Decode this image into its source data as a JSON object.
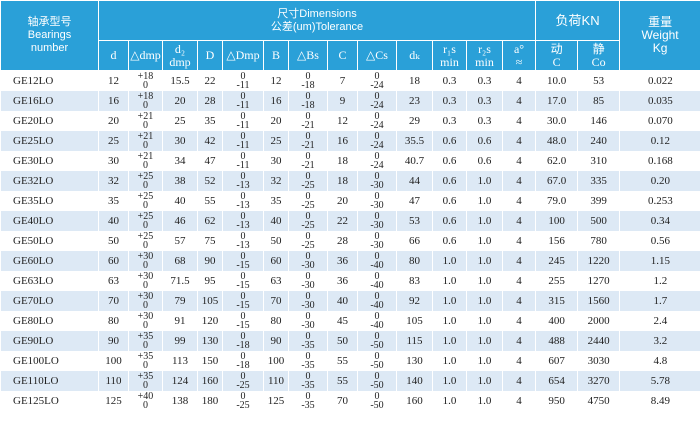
{
  "header": {
    "model": [
      "轴承型号",
      "Bearings",
      "number"
    ],
    "dimensions": [
      "尺寸Dimensions",
      "公差(um)Tolerance"
    ],
    "load": "负荷KN",
    "weight": [
      "重量",
      "Weight",
      "Kg"
    ]
  },
  "columns": [
    [
      "d"
    ],
    [
      "△dmp"
    ],
    [
      "d₂",
      "dmp"
    ],
    [
      "D"
    ],
    [
      "△Dmp"
    ],
    [
      "B"
    ],
    [
      "△Bs"
    ],
    [
      "C"
    ],
    [
      "△Cs"
    ],
    [
      "dₖ"
    ],
    [
      "r₁s",
      "min"
    ],
    [
      "r₂s",
      "min"
    ],
    [
      "a°",
      "≈"
    ],
    [
      "动",
      "C"
    ],
    [
      "静",
      "Co"
    ]
  ],
  "table": {
    "rows": [
      [
        "GE12LO",
        "12",
        [
          "+18",
          "0"
        ],
        "15.5",
        "22",
        [
          "0",
          "-11"
        ],
        "12",
        [
          "0",
          "-18"
        ],
        "7",
        [
          "0",
          "-24"
        ],
        "18",
        "0.3",
        "0.3",
        "4",
        "10.0",
        "53",
        "0.022"
      ],
      [
        "GE16LO",
        "16",
        [
          "+18",
          "0"
        ],
        "20",
        "28",
        [
          "0",
          "-11"
        ],
        "16",
        [
          "0",
          "-18"
        ],
        "9",
        [
          "0",
          "-24"
        ],
        "23",
        "0.3",
        "0.3",
        "4",
        "17.0",
        "85",
        "0.035"
      ],
      [
        "GE20LO",
        "20",
        [
          "+21",
          "0"
        ],
        "25",
        "35",
        [
          "0",
          "-11"
        ],
        "20",
        [
          "0",
          "-21"
        ],
        "12",
        [
          "0",
          "-24"
        ],
        "29",
        "0.3",
        "0.3",
        "4",
        "30.0",
        "146",
        "0.070"
      ],
      [
        "GE25LO",
        "25",
        [
          "+21",
          "0"
        ],
        "30",
        "42",
        [
          "0",
          "-11"
        ],
        "25",
        [
          "0",
          "-21"
        ],
        "16",
        [
          "0",
          "-24"
        ],
        "35.5",
        "0.6",
        "0.6",
        "4",
        "48.0",
        "240",
        "0.12"
      ],
      [
        "GE30LO",
        "30",
        [
          "+21",
          "0"
        ],
        "34",
        "47",
        [
          "0",
          "-11"
        ],
        "30",
        [
          "0",
          "-21"
        ],
        "18",
        [
          "0",
          "-24"
        ],
        "40.7",
        "0.6",
        "0.6",
        "4",
        "62.0",
        "310",
        "0.168"
      ],
      [
        "GE32LO",
        "32",
        [
          "+25",
          "0"
        ],
        "38",
        "52",
        [
          "0",
          "-13"
        ],
        "32",
        [
          "0",
          "-25"
        ],
        "18",
        [
          "0",
          "-30"
        ],
        "44",
        "0.6",
        "1.0",
        "4",
        "67.0",
        "335",
        "0.20"
      ],
      [
        "GE35LO",
        "35",
        [
          "+25",
          "0"
        ],
        "40",
        "55",
        [
          "0",
          "-13"
        ],
        "35",
        [
          "0",
          "-25"
        ],
        "20",
        [
          "0",
          "-30"
        ],
        "47",
        "0.6",
        "1.0",
        "4",
        "79.0",
        "399",
        "0.253"
      ],
      [
        "GE40LO",
        "40",
        [
          "+25",
          "0"
        ],
        "46",
        "62",
        [
          "0",
          "-13"
        ],
        "40",
        [
          "0",
          "-25"
        ],
        "22",
        [
          "0",
          "-30"
        ],
        "53",
        "0.6",
        "1.0",
        "4",
        "100",
        "500",
        "0.34"
      ],
      [
        "GE50LO",
        "50",
        [
          "+25",
          "0"
        ],
        "57",
        "75",
        [
          "0",
          "-13"
        ],
        "50",
        [
          "0",
          "-25"
        ],
        "28",
        [
          "0",
          "-30"
        ],
        "66",
        "0.6",
        "1.0",
        "4",
        "156",
        "780",
        "0.56"
      ],
      [
        "GE60LO",
        "60",
        [
          "+30",
          "0"
        ],
        "68",
        "90",
        [
          "0",
          "-15"
        ],
        "60",
        [
          "0",
          "-30"
        ],
        "36",
        [
          "0",
          "-40"
        ],
        "80",
        "1.0",
        "1.0",
        "4",
        "245",
        "1220",
        "1.15"
      ],
      [
        "GE63LO",
        "63",
        [
          "+30",
          "0"
        ],
        "71.5",
        "95",
        [
          "0",
          "-15"
        ],
        "63",
        [
          "0",
          "-30"
        ],
        "36",
        [
          "0",
          "-40"
        ],
        "83",
        "1.0",
        "1.0",
        "4",
        "255",
        "1270",
        "1.2"
      ],
      [
        "GE70LO",
        "70",
        [
          "+30",
          "0"
        ],
        "79",
        "105",
        [
          "0",
          "-15"
        ],
        "70",
        [
          "0",
          "-30"
        ],
        "40",
        [
          "0",
          "-40"
        ],
        "92",
        "1.0",
        "1.0",
        "4",
        "315",
        "1560",
        "1.7"
      ],
      [
        "GE80LO",
        "80",
        [
          "+30",
          "0"
        ],
        "91",
        "120",
        [
          "0",
          "-15"
        ],
        "80",
        [
          "0",
          "-30"
        ],
        "45",
        [
          "0",
          "-40"
        ],
        "105",
        "1.0",
        "1.0",
        "4",
        "400",
        "2000",
        "2.4"
      ],
      [
        "GE90LO",
        "90",
        [
          "+35",
          "0"
        ],
        "99",
        "130",
        [
          "0",
          "-18"
        ],
        "90",
        [
          "0",
          "-35"
        ],
        "50",
        [
          "0",
          "-50"
        ],
        "115",
        "1.0",
        "1.0",
        "4",
        "488",
        "2440",
        "3.2"
      ],
      [
        "GE100LO",
        "100",
        [
          "+35",
          "0"
        ],
        "113",
        "150",
        [
          "0",
          "-18"
        ],
        "100",
        [
          "0",
          "-35"
        ],
        "55",
        [
          "0",
          "-50"
        ],
        "130",
        "1.0",
        "1.0",
        "4",
        "607",
        "3030",
        "4.8"
      ],
      [
        "GE110LO",
        "110",
        [
          "+35",
          "0"
        ],
        "124",
        "160",
        [
          "0",
          "-25"
        ],
        "110",
        [
          "0",
          "-35"
        ],
        "55",
        [
          "0",
          "-50"
        ],
        "140",
        "1.0",
        "1.0",
        "4",
        "654",
        "3270",
        "5.78"
      ],
      [
        "GE125LO",
        "125",
        [
          "+40",
          "0"
        ],
        "138",
        "180",
        [
          "0",
          "-25"
        ],
        "125",
        [
          "0",
          "-35"
        ],
        "70",
        [
          "0",
          "-50"
        ],
        "160",
        "1.0",
        "1.0",
        "4",
        "950",
        "4750",
        "8.49"
      ]
    ]
  }
}
